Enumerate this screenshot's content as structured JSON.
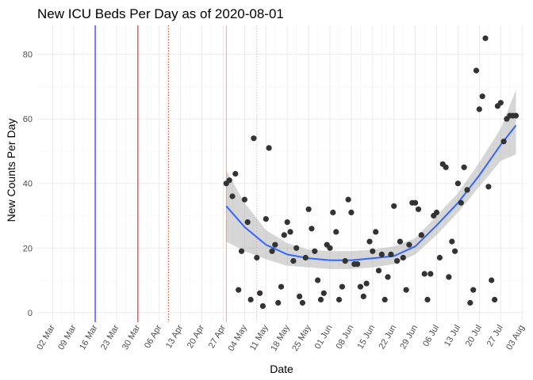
{
  "chart_data": {
    "type": "scatter",
    "title": "New ICU Beds Per Day as of 2020-08-01",
    "xlabel": "Date",
    "ylabel": "New Counts Per Day",
    "xlim": [
      "2020-02-26",
      "2020-08-04"
    ],
    "ylim": [
      -3,
      89
    ],
    "y_ticks": [
      0,
      20,
      40,
      60,
      80
    ],
    "x_ticks": [
      {
        "date": "2020-03-02",
        "label": "02 Mar"
      },
      {
        "date": "2020-03-09",
        "label": "09 Mar"
      },
      {
        "date": "2020-03-16",
        "label": "16 Mar"
      },
      {
        "date": "2020-03-23",
        "label": "23 Mar"
      },
      {
        "date": "2020-03-30",
        "label": "30 Mar"
      },
      {
        "date": "2020-04-06",
        "label": "06 Apr"
      },
      {
        "date": "2020-04-13",
        "label": "13 Apr"
      },
      {
        "date": "2020-04-20",
        "label": "20 Apr"
      },
      {
        "date": "2020-04-27",
        "label": "27 Apr"
      },
      {
        "date": "2020-05-04",
        "label": "04 May"
      },
      {
        "date": "2020-05-11",
        "label": "11 May"
      },
      {
        "date": "2020-05-18",
        "label": "18 May"
      },
      {
        "date": "2020-05-25",
        "label": "25 May"
      },
      {
        "date": "2020-06-01",
        "label": "01 Jun"
      },
      {
        "date": "2020-06-08",
        "label": "08 Jun"
      },
      {
        "date": "2020-06-15",
        "label": "15 Jun"
      },
      {
        "date": "2020-06-22",
        "label": "22 Jun"
      },
      {
        "date": "2020-06-29",
        "label": "29 Jun"
      },
      {
        "date": "2020-07-06",
        "label": "06 Jul"
      },
      {
        "date": "2020-07-13",
        "label": "13 Jul"
      },
      {
        "date": "2020-07-20",
        "label": "20 Jul"
      },
      {
        "date": "2020-07-27",
        "label": "27 Jul"
      },
      {
        "date": "2020-08-03",
        "label": "03 Aug"
      }
    ],
    "grid": true,
    "legend": "none",
    "reference_lines": [
      {
        "date": "2020-03-16",
        "color": "#0000ff",
        "style": "solid"
      },
      {
        "date": "2020-03-30",
        "color": "#ff0000",
        "style": "solid"
      },
      {
        "date": "2020-04-09",
        "color": "#cc3300",
        "style": "dotted"
      },
      {
        "date": "2020-04-28",
        "color": "#ff9999",
        "style": "solid"
      },
      {
        "date": "2020-05-08",
        "color": "#ffb0b0",
        "style": "dotted"
      }
    ],
    "points": {
      "color": "#333333",
      "x": [
        "2020-04-28",
        "2020-04-29",
        "2020-04-30",
        "2020-05-01",
        "2020-05-02",
        "2020-05-03",
        "2020-05-04",
        "2020-05-05",
        "2020-05-06",
        "2020-05-07",
        "2020-05-08",
        "2020-05-09",
        "2020-05-10",
        "2020-05-11",
        "2020-05-12",
        "2020-05-13",
        "2020-05-14",
        "2020-05-15",
        "2020-05-16",
        "2020-05-17",
        "2020-05-18",
        "2020-05-19",
        "2020-05-20",
        "2020-05-21",
        "2020-05-22",
        "2020-05-23",
        "2020-05-24",
        "2020-05-25",
        "2020-05-26",
        "2020-05-27",
        "2020-05-28",
        "2020-05-29",
        "2020-05-30",
        "2020-05-31",
        "2020-06-01",
        "2020-06-02",
        "2020-06-03",
        "2020-06-04",
        "2020-06-05",
        "2020-06-06",
        "2020-06-07",
        "2020-06-08",
        "2020-06-09",
        "2020-06-10",
        "2020-06-11",
        "2020-06-12",
        "2020-06-13",
        "2020-06-14",
        "2020-06-15",
        "2020-06-16",
        "2020-06-17",
        "2020-06-18",
        "2020-06-19",
        "2020-06-20",
        "2020-06-21",
        "2020-06-22",
        "2020-06-23",
        "2020-06-24",
        "2020-06-25",
        "2020-06-26",
        "2020-06-27",
        "2020-06-28",
        "2020-06-29",
        "2020-06-30",
        "2020-07-01",
        "2020-07-02",
        "2020-07-03",
        "2020-07-04",
        "2020-07-05",
        "2020-07-06",
        "2020-07-07",
        "2020-07-08",
        "2020-07-09",
        "2020-07-10",
        "2020-07-11",
        "2020-07-12",
        "2020-07-13",
        "2020-07-14",
        "2020-07-15",
        "2020-07-16",
        "2020-07-17",
        "2020-07-18",
        "2020-07-19",
        "2020-07-20",
        "2020-07-21",
        "2020-07-22",
        "2020-07-23",
        "2020-07-24",
        "2020-07-25",
        "2020-07-26",
        "2020-07-27",
        "2020-07-28",
        "2020-07-29",
        "2020-07-30",
        "2020-07-31",
        "2020-08-01"
      ],
      "y": [
        40,
        41,
        36,
        43,
        7,
        19,
        35,
        28,
        4,
        54,
        17,
        6,
        2,
        29,
        51,
        19,
        21,
        3,
        8,
        24,
        28,
        25,
        16,
        20,
        5,
        3,
        17,
        32,
        26,
        19,
        10,
        4,
        6,
        21,
        20,
        31,
        25,
        4,
        8,
        16,
        35,
        31,
        15,
        15,
        8,
        5,
        9,
        22,
        19,
        25,
        13,
        18,
        4,
        11,
        18,
        33,
        16,
        22,
        17,
        7,
        21,
        34,
        34,
        32,
        24,
        12,
        4,
        12,
        30,
        31,
        17,
        46,
        45,
        11,
        22,
        19,
        40,
        34,
        45,
        38,
        3,
        7,
        75,
        63,
        67,
        85,
        39,
        10,
        4,
        64,
        65,
        53,
        60,
        61,
        61,
        61
      ]
    },
    "smooth": {
      "color": "#3366ff",
      "band_color": "#999999",
      "x": [
        "2020-04-28",
        "2020-05-04",
        "2020-05-11",
        "2020-05-18",
        "2020-05-25",
        "2020-06-01",
        "2020-06-08",
        "2020-06-15",
        "2020-06-22",
        "2020-06-29",
        "2020-07-06",
        "2020-07-13",
        "2020-07-20",
        "2020-07-27",
        "2020-08-01"
      ],
      "y": [
        33,
        26.5,
        21,
        18,
        16.8,
        16.2,
        16.2,
        16.8,
        17.5,
        20.5,
        27,
        34,
        42.5,
        52,
        58
      ],
      "lower": [
        22,
        19,
        16.5,
        14.5,
        14,
        13.5,
        13.5,
        14,
        15,
        18,
        24,
        31,
        39,
        47,
        49
      ],
      "upper": [
        44,
        34,
        25.5,
        21.5,
        19.5,
        19,
        19,
        19.5,
        20.5,
        23,
        30,
        37,
        46.5,
        57,
        69
      ]
    }
  }
}
